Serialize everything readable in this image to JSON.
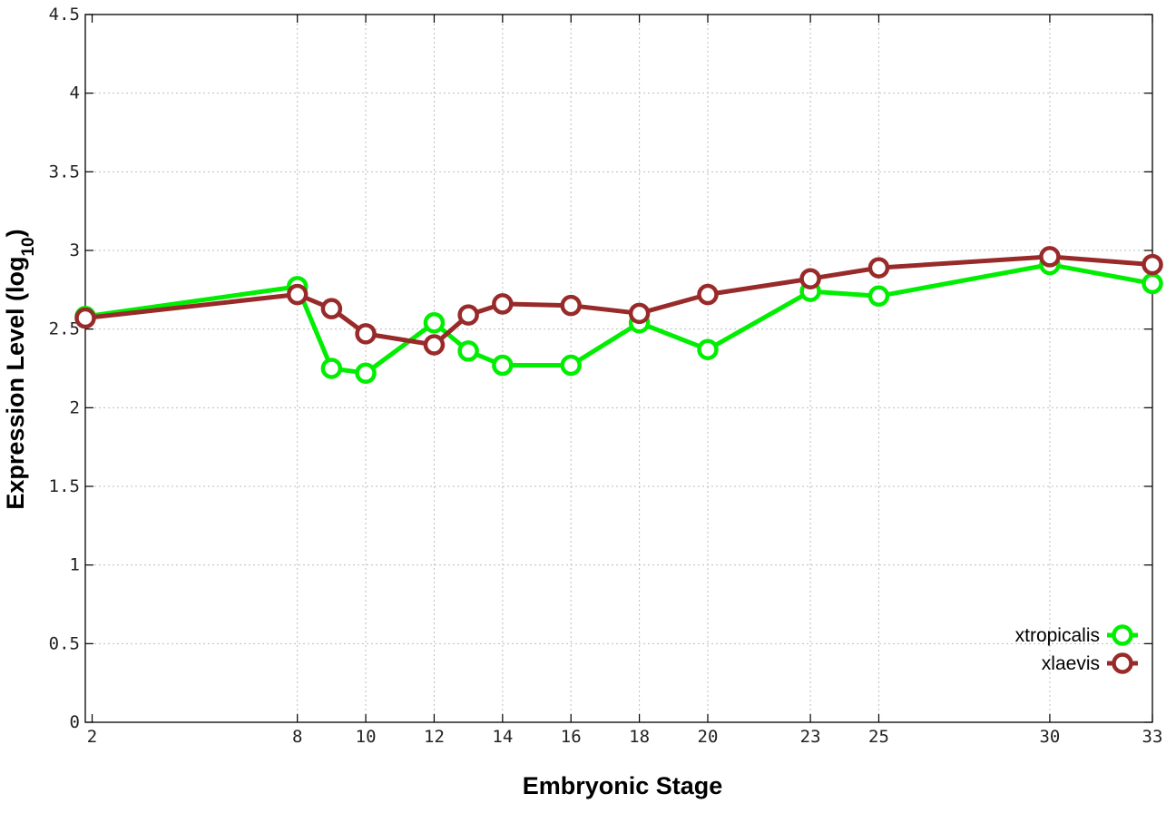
{
  "chart_data": {
    "type": "line",
    "xlabel": "Embryonic Stage",
    "ylabel_main": "Expression Level (log",
    "ylabel_sub": "10",
    "ylabel_close": ")",
    "xlim": [
      1.8,
      33
    ],
    "ylim": [
      0,
      4.5
    ],
    "x_ticks": [
      2,
      8,
      10,
      12,
      14,
      16,
      18,
      20,
      23,
      25,
      30,
      33
    ],
    "x_tick_labels": [
      "2",
      "8",
      "10",
      "12",
      "14",
      "16",
      "18",
      "20",
      "23",
      "25",
      "30",
      "33"
    ],
    "y_ticks": [
      0,
      0.5,
      1,
      1.5,
      2,
      2.5,
      3,
      3.5,
      4,
      4.5
    ],
    "y_tick_labels": [
      "0",
      "0.5",
      "1",
      "1.5",
      "2",
      "2.5",
      "3",
      "3.5",
      "4",
      "4.5"
    ],
    "grid": true,
    "legend_position": "bottom-right",
    "series": [
      {
        "name": "xtropicalis",
        "color": "#00ee00",
        "x": [
          1.8,
          8,
          9,
          10,
          12,
          13,
          14,
          16,
          18,
          20,
          23,
          25,
          30,
          33
        ],
        "y": [
          2.58,
          2.77,
          2.25,
          2.22,
          2.54,
          2.36,
          2.27,
          2.27,
          2.54,
          2.37,
          2.74,
          2.71,
          2.91,
          2.79
        ]
      },
      {
        "name": "xlaevis",
        "color": "#992a2a",
        "x": [
          1.8,
          8,
          9,
          10,
          12,
          13,
          14,
          16,
          18,
          20,
          23,
          25,
          30,
          33
        ],
        "y": [
          2.57,
          2.72,
          2.63,
          2.47,
          2.4,
          2.59,
          2.66,
          2.65,
          2.6,
          2.72,
          2.82,
          2.89,
          2.96,
          2.91
        ]
      }
    ]
  }
}
